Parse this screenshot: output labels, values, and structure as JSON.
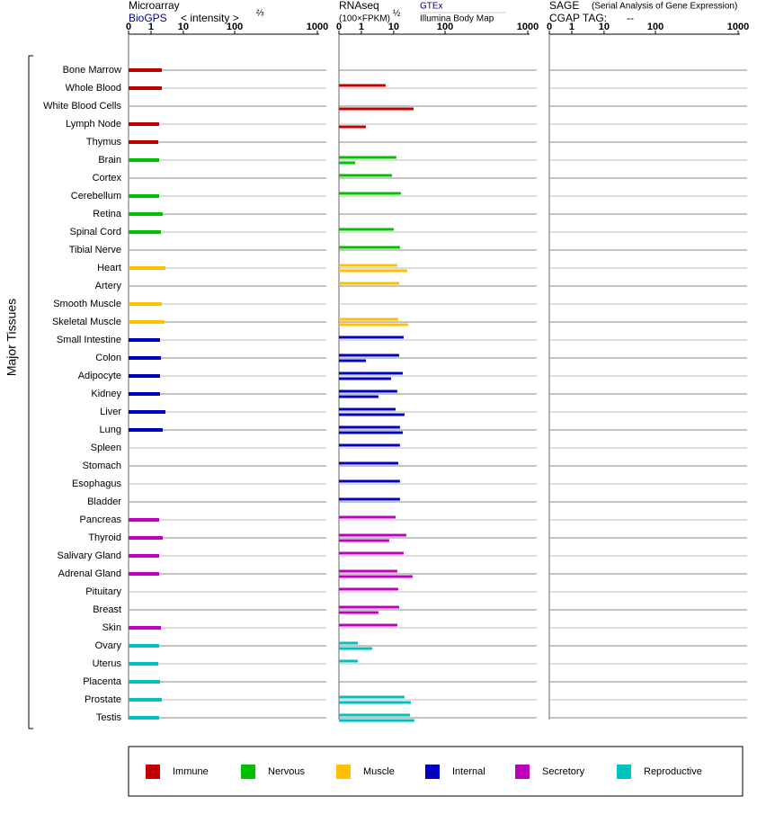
{
  "chart_data": {
    "type": "bar",
    "ylabel": "Major Tissues",
    "categories": [
      "Bone Marrow",
      "Whole Blood",
      "White Blood Cells",
      "Lymph Node",
      "Thymus",
      "Brain",
      "Cortex",
      "Cerebellum",
      "Retina",
      "Spinal Cord",
      "Tibial Nerve",
      "Heart",
      "Artery",
      "Smooth Muscle",
      "Skeletal Muscle",
      "Small Intestine",
      "Colon",
      "Adipocyte",
      "Kidney",
      "Liver",
      "Lung",
      "Spleen",
      "Stomach",
      "Esophagus",
      "Bladder",
      "Pancreas",
      "Thyroid",
      "Salivary Gland",
      "Adrenal Gland",
      "Pituitary",
      "Breast",
      "Skin",
      "Ovary",
      "Uterus",
      "Placenta",
      "Prostate",
      "Testis"
    ],
    "category_groups": [
      "Immune",
      "Immune",
      "Immune",
      "Immune",
      "Immune",
      "Nervous",
      "Nervous",
      "Nervous",
      "Nervous",
      "Nervous",
      "Nervous",
      "Muscle",
      "Muscle",
      "Muscle",
      "Muscle",
      "Internal",
      "Internal",
      "Internal",
      "Internal",
      "Internal",
      "Internal",
      "Internal",
      "Internal",
      "Internal",
      "Internal",
      "Secretory",
      "Secretory",
      "Secretory",
      "Secretory",
      "Secretory",
      "Secretory",
      "Secretory",
      "Reproductive",
      "Reproductive",
      "Reproductive",
      "Reproductive",
      "Reproductive"
    ],
    "groups": [
      {
        "name": "Immune",
        "color": "#c00000"
      },
      {
        "name": "Nervous",
        "color": "#00c000"
      },
      {
        "name": "Muscle",
        "color": "#ffc000"
      },
      {
        "name": "Internal",
        "color": "#0000c0"
      },
      {
        "name": "Secretory",
        "color": "#c000c0"
      },
      {
        "name": "Reproductive",
        "color": "#00c0c0"
      }
    ],
    "panels": [
      {
        "title": "Microarray",
        "axis_label": "< intensity >",
        "exponent": "⅔",
        "xlim": [
          0,
          1000
        ],
        "xticks": [
          0,
          1,
          10,
          100,
          1000
        ],
        "series": [
          {
            "name": "BioGPS",
            "values": [
              4,
              4,
              null,
              3.25,
              3,
              3.25,
              null,
              3.25,
              4.25,
              3.75,
              null,
              5,
              null,
              4,
              4.75,
              3.5,
              3.75,
              3.5,
              3.5,
              5,
              4.25,
              null,
              null,
              null,
              null,
              3.25,
              4.25,
              3.25,
              3.25,
              null,
              null,
              3.75,
              3.25,
              3,
              3.5,
              4,
              3.25
            ]
          }
        ]
      },
      {
        "title": "RNAseq",
        "axis_label": "(100×FPKM)",
        "exponent": "½",
        "xlim": [
          0,
          1000
        ],
        "xticks": [
          0,
          1,
          10,
          100,
          1000
        ],
        "series": [
          {
            "name": "GTEx",
            "values": [
              null,
              7.75,
              null,
              null,
              null,
              14.7,
              9.5,
              22.6,
              null,
              10,
              21,
              16.3,
              19.5,
              null,
              17.9,
              27.4,
              19.5,
              25.8,
              16.3,
              13.2,
              21,
              21,
              17.9,
              21,
              21,
              13.2,
              32,
              27.4,
              16.3,
              17.9,
              19.5,
              16.3,
              0.84,
              0.84,
              null,
              29,
              38.7
            ]
          },
          {
            "name": "Illumina Body Map",
            "values": [
              null,
              null,
              44.7,
              2.25,
              null,
              0.72,
              null,
              null,
              null,
              null,
              null,
              33.7,
              null,
              null,
              35.3,
              null,
              2.25,
              9.25,
              5.75,
              29,
              25.8,
              null,
              null,
              null,
              null,
              null,
              8.75,
              null,
              43,
              null,
              5.75,
              null,
              4,
              null,
              null,
              40,
              46.3
            ]
          }
        ]
      },
      {
        "title": "SAGE",
        "subtitle": "(Serial Analysis of Gene Expression)",
        "tag_label": "CGAP TAG:",
        "tag": "--",
        "xlim": [
          0,
          1000
        ],
        "xticks": [
          0,
          1,
          10,
          100,
          1000
        ],
        "series": []
      }
    ]
  }
}
